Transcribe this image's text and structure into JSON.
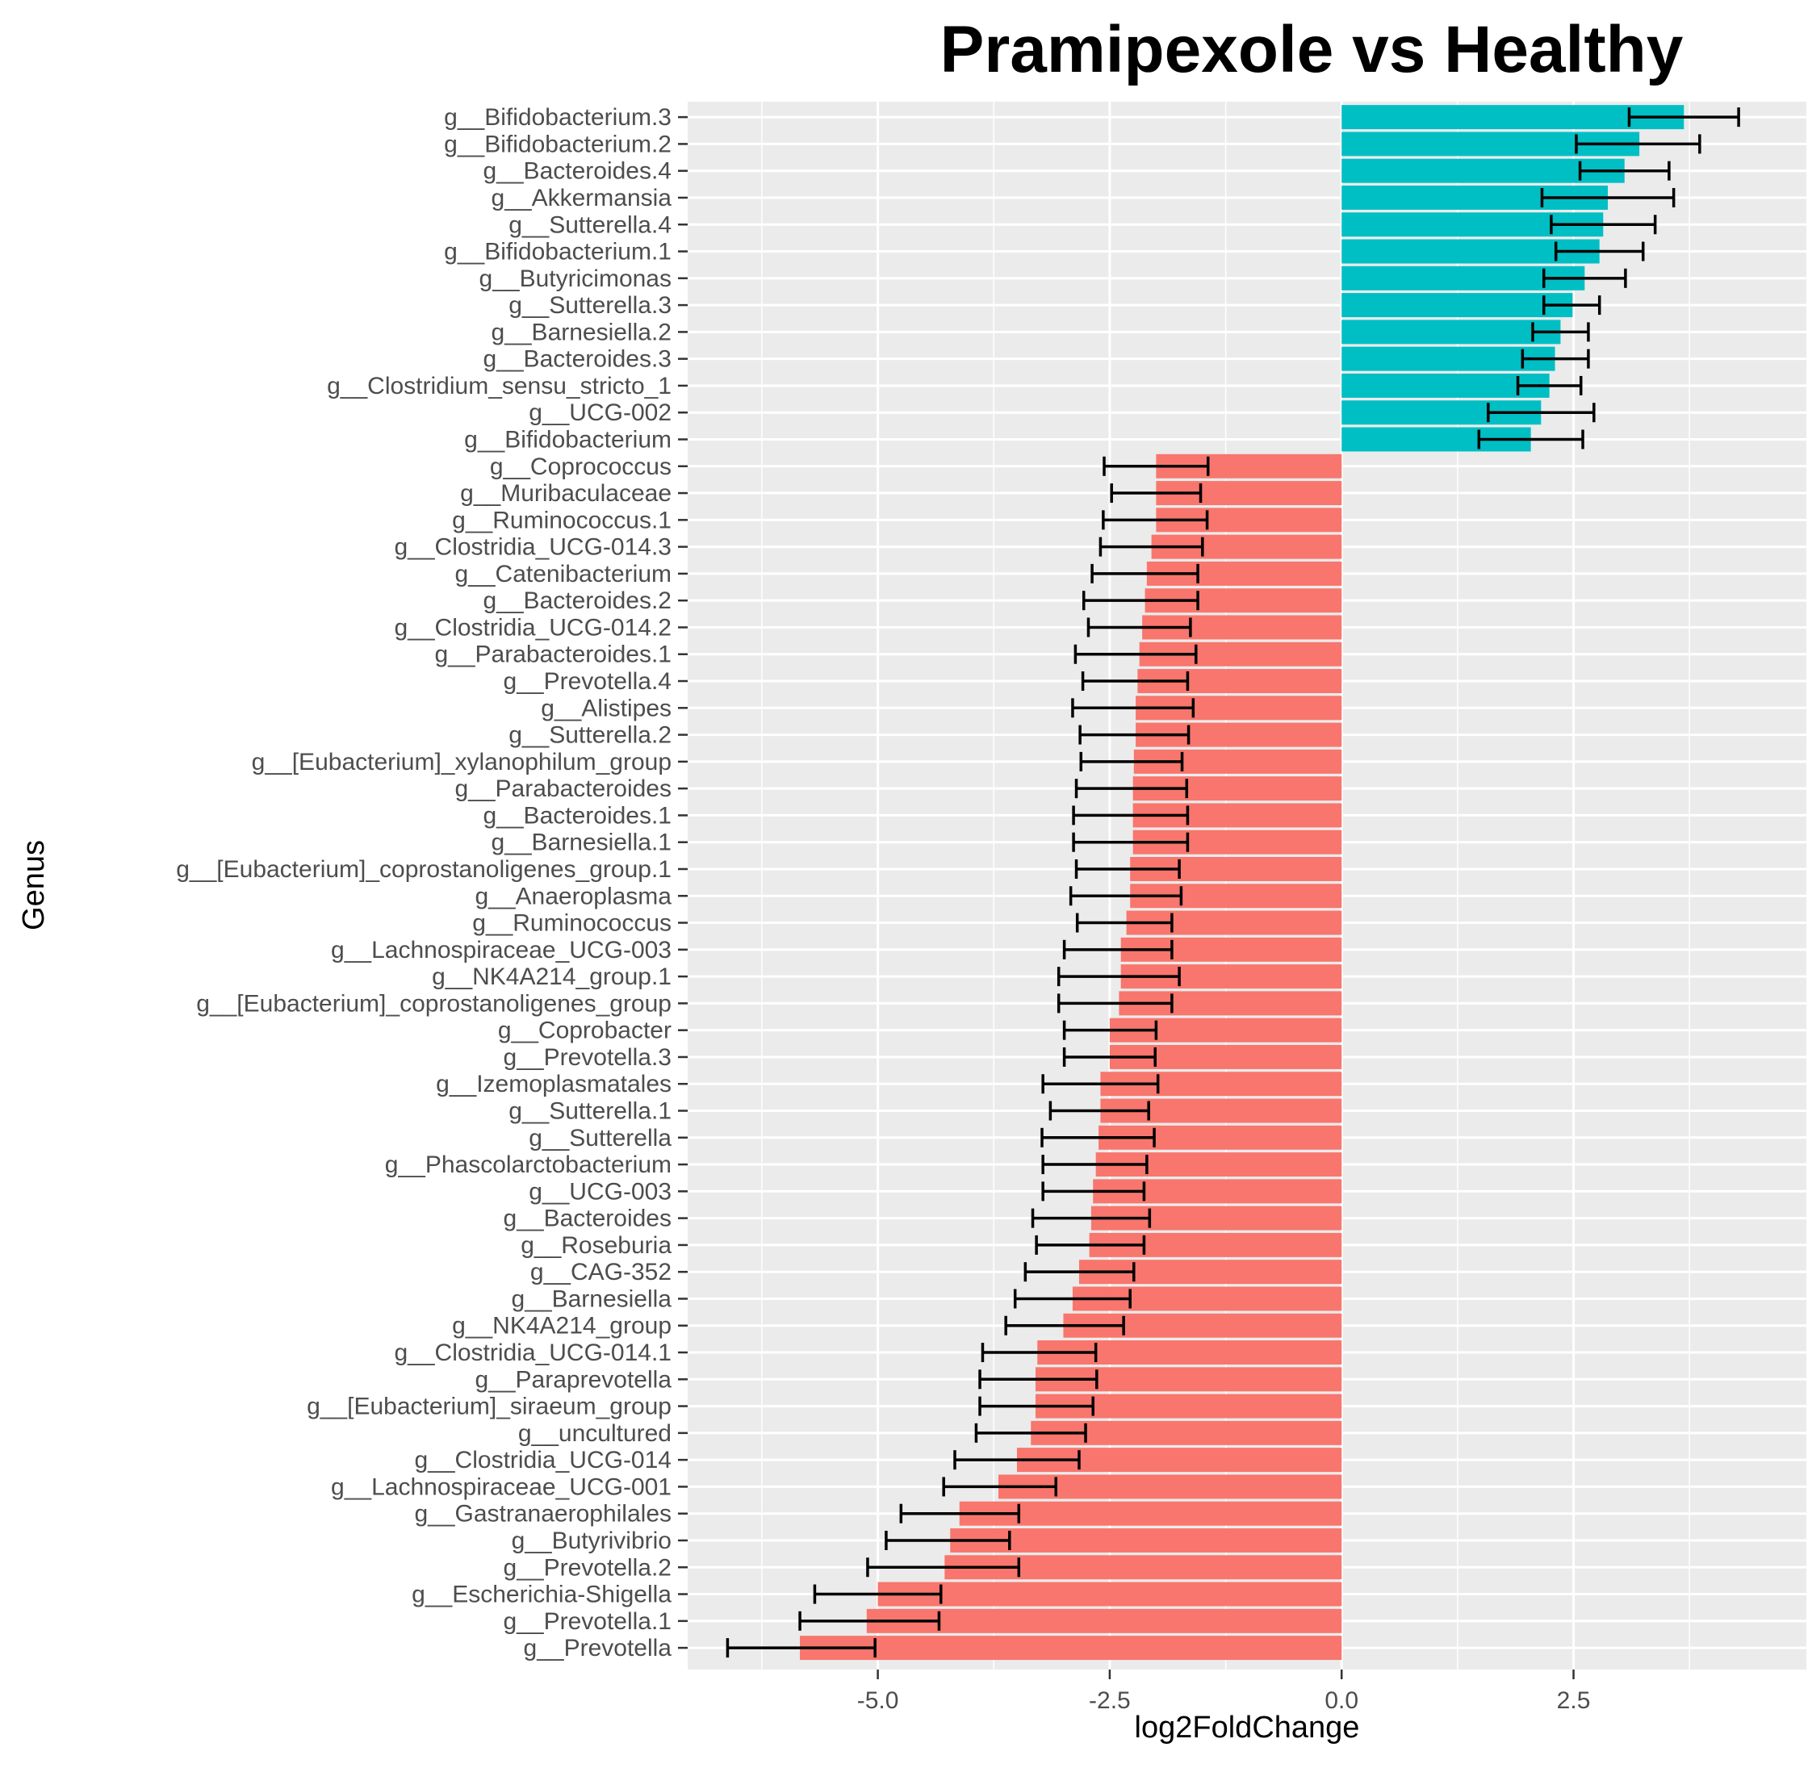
{
  "chart_data": {
    "type": "bar",
    "orientation": "horizontal",
    "title": "Pramipexole vs Healthy",
    "xlabel": "log2FoldChange",
    "ylabel": "Genus",
    "xlim": [
      -7.05,
      5.01
    ],
    "x_ticks": [
      -5.0,
      -2.5,
      0.0,
      2.5
    ],
    "x_tick_labels": [
      "-5.0",
      "-2.5",
      "0.0",
      "2.5"
    ],
    "grid": true,
    "legend": "none",
    "colors": {
      "positive": "#00BFC4",
      "negative": "#F8766D",
      "panel": "#EBEBEB",
      "grid": "#FFFFFF",
      "errorbar": "#000000"
    },
    "categories": [
      "g__Bifidobacterium.3",
      "g__Bifidobacterium.2",
      "g__Bacteroides.4",
      "g__Akkermansia",
      "g__Sutterella.4",
      "g__Bifidobacterium.1",
      "g__Butyricimonas",
      "g__Sutterella.3",
      "g__Barnesiella.2",
      "g__Bacteroides.3",
      "g__Clostridium_sensu_stricto_1",
      "g__UCG-002",
      "g__Bifidobacterium",
      "g__Coprococcus",
      "g__Muribaculaceae",
      "g__Ruminococcus.1",
      "g__Clostridia_UCG-014.3",
      "g__Catenibacterium",
      "g__Bacteroides.2",
      "g__Clostridia_UCG-014.2",
      "g__Parabacteroides.1",
      "g__Prevotella.4",
      "g__Alistipes",
      "g__Sutterella.2",
      "g__[Eubacterium]_xylanophilum_group",
      "g__Parabacteroides",
      "g__Bacteroides.1",
      "g__Barnesiella.1",
      "g__[Eubacterium]_coprostanoligenes_group.1",
      "g__Anaeroplasma",
      "g__Ruminococcus",
      "g__Lachnospiraceae_UCG-003",
      "g__NK4A214_group.1",
      "g__[Eubacterium]_coprostanoligenes_group",
      "g__Coprobacter",
      "g__Prevotella.3",
      "g__Izemoplasmatales",
      "g__Sutterella.1",
      "g__Sutterella",
      "g__Phascolarctobacterium",
      "g__UCG-003",
      "g__Bacteroides",
      "g__Roseburia",
      "g__CAG-352",
      "g__Barnesiella",
      "g__NK4A214_group",
      "g__Clostridia_UCG-014.1",
      "g__Paraprevotella",
      "g__[Eubacterium]_siraeum_group",
      "g__uncultured",
      "g__Clostridia_UCG-014",
      "g__Lachnospiraceae_UCG-001",
      "g__Gastranaerophilales",
      "g__Butyrivibrio",
      "g__Prevotella.2",
      "g__Escherichia-Shigella",
      "g__Prevotella.1",
      "g__Prevotella"
    ],
    "values": [
      3.69,
      3.21,
      3.05,
      2.87,
      2.82,
      2.78,
      2.62,
      2.49,
      2.36,
      2.3,
      2.24,
      2.15,
      2.04,
      -2.0,
      -2.0,
      -2.0,
      -2.05,
      -2.1,
      -2.12,
      -2.15,
      -2.18,
      -2.2,
      -2.22,
      -2.22,
      -2.24,
      -2.25,
      -2.25,
      -2.25,
      -2.28,
      -2.28,
      -2.32,
      -2.38,
      -2.38,
      -2.4,
      -2.5,
      -2.5,
      -2.6,
      -2.6,
      -2.62,
      -2.65,
      -2.68,
      -2.7,
      -2.72,
      -2.83,
      -2.9,
      -3.0,
      -3.28,
      -3.3,
      -3.3,
      -3.35,
      -3.5,
      -3.7,
      -4.12,
      -4.22,
      -4.28,
      -5.0,
      -5.12,
      -5.84
    ],
    "error_low": [
      3.1,
      2.53,
      2.57,
      2.16,
      2.26,
      2.31,
      2.18,
      2.18,
      2.06,
      1.95,
      1.9,
      1.58,
      1.48,
      -2.56,
      -2.48,
      -2.57,
      -2.6,
      -2.69,
      -2.78,
      -2.73,
      -2.87,
      -2.79,
      -2.9,
      -2.82,
      -2.81,
      -2.86,
      -2.89,
      -2.89,
      -2.86,
      -2.92,
      -2.85,
      -2.99,
      -3.05,
      -3.05,
      -2.99,
      -2.99,
      -3.22,
      -3.14,
      -3.23,
      -3.22,
      -3.22,
      -3.33,
      -3.29,
      -3.41,
      -3.52,
      -3.62,
      -3.87,
      -3.9,
      -3.9,
      -3.94,
      -4.17,
      -4.29,
      -4.75,
      -4.91,
      -5.11,
      -5.68,
      -5.84,
      -6.62
    ],
    "error_high": [
      4.28,
      3.86,
      3.53,
      3.58,
      3.38,
      3.25,
      3.06,
      2.78,
      2.66,
      2.66,
      2.58,
      2.72,
      2.6,
      -1.44,
      -1.52,
      -1.45,
      -1.5,
      -1.55,
      -1.55,
      -1.63,
      -1.57,
      -1.66,
      -1.6,
      -1.65,
      -1.72,
      -1.67,
      -1.66,
      -1.66,
      -1.75,
      -1.73,
      -1.83,
      -1.83,
      -1.75,
      -1.83,
      -2.0,
      -2.01,
      -1.98,
      -2.08,
      -2.02,
      -2.1,
      -2.13,
      -2.07,
      -2.13,
      -2.24,
      -2.28,
      -2.35,
      -2.65,
      -2.64,
      -2.68,
      -2.76,
      -2.83,
      -3.08,
      -3.48,
      -3.58,
      -3.48,
      -4.32,
      -4.34,
      -5.03
    ]
  }
}
